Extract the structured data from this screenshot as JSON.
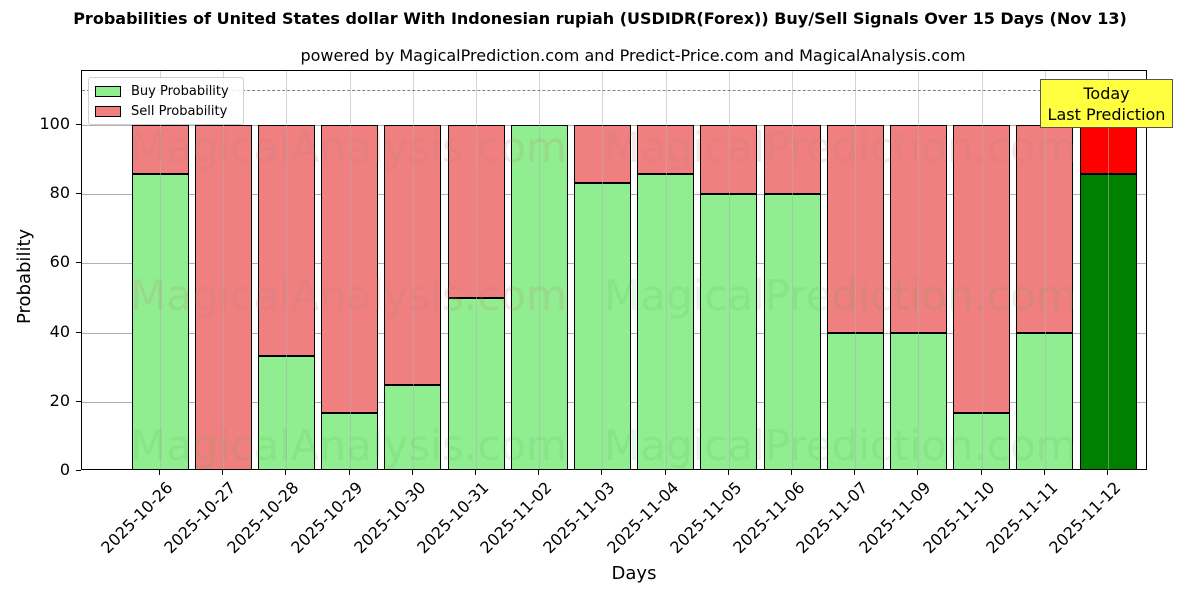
{
  "header": {
    "title": "Probabilities of United States dollar With Indonesian rupiah (USDIDR(Forex)) Buy/Sell Signals Over 15 Days (Nov 13)",
    "subtitle": "powered by MagicalPrediction.com and Predict-Price.com and MagicalAnalysis.com"
  },
  "legend": {
    "buy_label": "Buy Probability",
    "sell_label": "Sell Probability"
  },
  "annotation": {
    "line1": "Today",
    "line2": "Last Prediction"
  },
  "watermarks": [
    "MagicalAnalysis.com",
    "MagicalPrediction.com"
  ],
  "colors": {
    "buy": "#90ee90",
    "sell": "#f08080",
    "buy_today": "#008000",
    "sell_today": "#ff0000",
    "annotation_bg": "#ffff40",
    "threshold_line": "#808080"
  },
  "axes": {
    "xlabel": "Days",
    "ylabel": "Probability",
    "yticks": [
      "0",
      "20",
      "40",
      "60",
      "80",
      "100"
    ]
  },
  "chart_data": {
    "type": "bar",
    "stacked": true,
    "title": "Probabilities of United States dollar With Indonesian rupiah (USDIDR(Forex)) Buy/Sell Signals Over 15 Days (Nov 13)",
    "subtitle": "powered by MagicalPrediction.com and Predict-Price.com and MagicalAnalysis.com",
    "xlabel": "Days",
    "ylabel": "Probability",
    "ylim": [
      0,
      115
    ],
    "yticks": [
      0,
      20,
      40,
      60,
      80,
      100
    ],
    "grid": true,
    "legend_position": "upper left",
    "threshold_line": 110,
    "categories": [
      "2025-10-26",
      "2025-10-27",
      "2025-10-28",
      "2025-10-29",
      "2025-10-30",
      "2025-10-31",
      "2025-11-02",
      "2025-11-03",
      "2025-11-04",
      "2025-11-05",
      "2025-11-06",
      "2025-11-07",
      "2025-11-09",
      "2025-11-10",
      "2025-11-11",
      "2025-11-12"
    ],
    "series": [
      {
        "name": "Buy Probability",
        "values": [
          85.7,
          0,
          33.3,
          16.7,
          25,
          50,
          100,
          83.3,
          85.7,
          80,
          80,
          40,
          40,
          16.7,
          40,
          85.7
        ]
      },
      {
        "name": "Sell Probability",
        "values": [
          14.3,
          100,
          66.7,
          83.3,
          75,
          50,
          0,
          16.7,
          14.3,
          20,
          20,
          60,
          60,
          83.3,
          60,
          14.3
        ]
      }
    ],
    "annotations": [
      {
        "text": "Today\nLast Prediction",
        "category": "2025-11-12"
      }
    ],
    "highlight_last": true
  }
}
